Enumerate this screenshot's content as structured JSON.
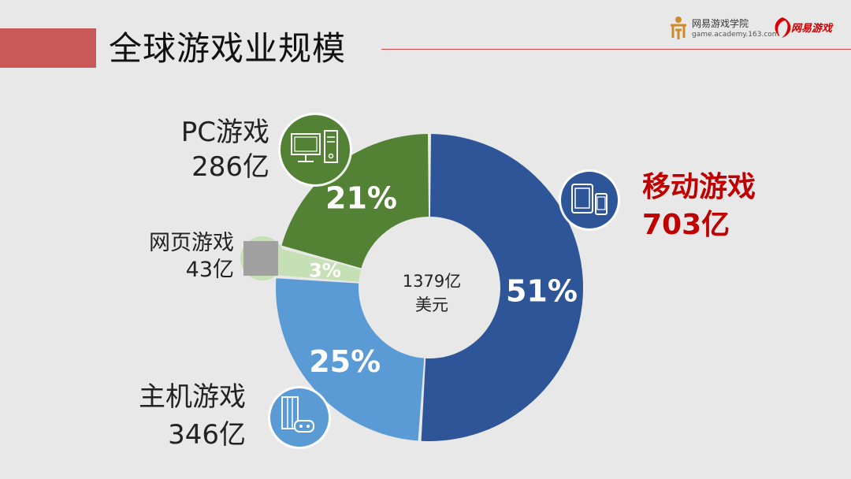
{
  "header": {
    "title": "全球游戏业规模",
    "academy_name": "网易游戏学院",
    "academy_url": "game.academy.163.com",
    "brand_name": "网易游戏"
  },
  "chart_data": {
    "type": "pie",
    "variant": "donut",
    "total_label_line1": "1379亿",
    "total_label_line2": "美元",
    "slices": [
      {
        "name": "移动游戏",
        "value_label": "703亿",
        "value": 703,
        "percent": 51,
        "percent_label": "51%",
        "color": "#2e5597",
        "icon": "tablet-phone-icon"
      },
      {
        "name": "主机游戏",
        "value_label": "346亿",
        "value": 346,
        "percent": 25,
        "percent_label": "25%",
        "color": "#5b9bd5",
        "icon": "console-gamepad-icon"
      },
      {
        "name": "网页游戏",
        "value_label": "43亿",
        "value": 43,
        "percent": 3,
        "percent_label": "3%",
        "color": "#c5e0b4",
        "icon": "browser-square-icon"
      },
      {
        "name": "PC游戏",
        "value_label": "286亿",
        "value": 286,
        "percent": 21,
        "percent_label": "21%",
        "color": "#548235",
        "icon": "desktop-computer-icon"
      }
    ]
  },
  "colors": {
    "accent_red": "#c00000",
    "header_bar": "#c8585a",
    "background": "#e8e8e8"
  }
}
